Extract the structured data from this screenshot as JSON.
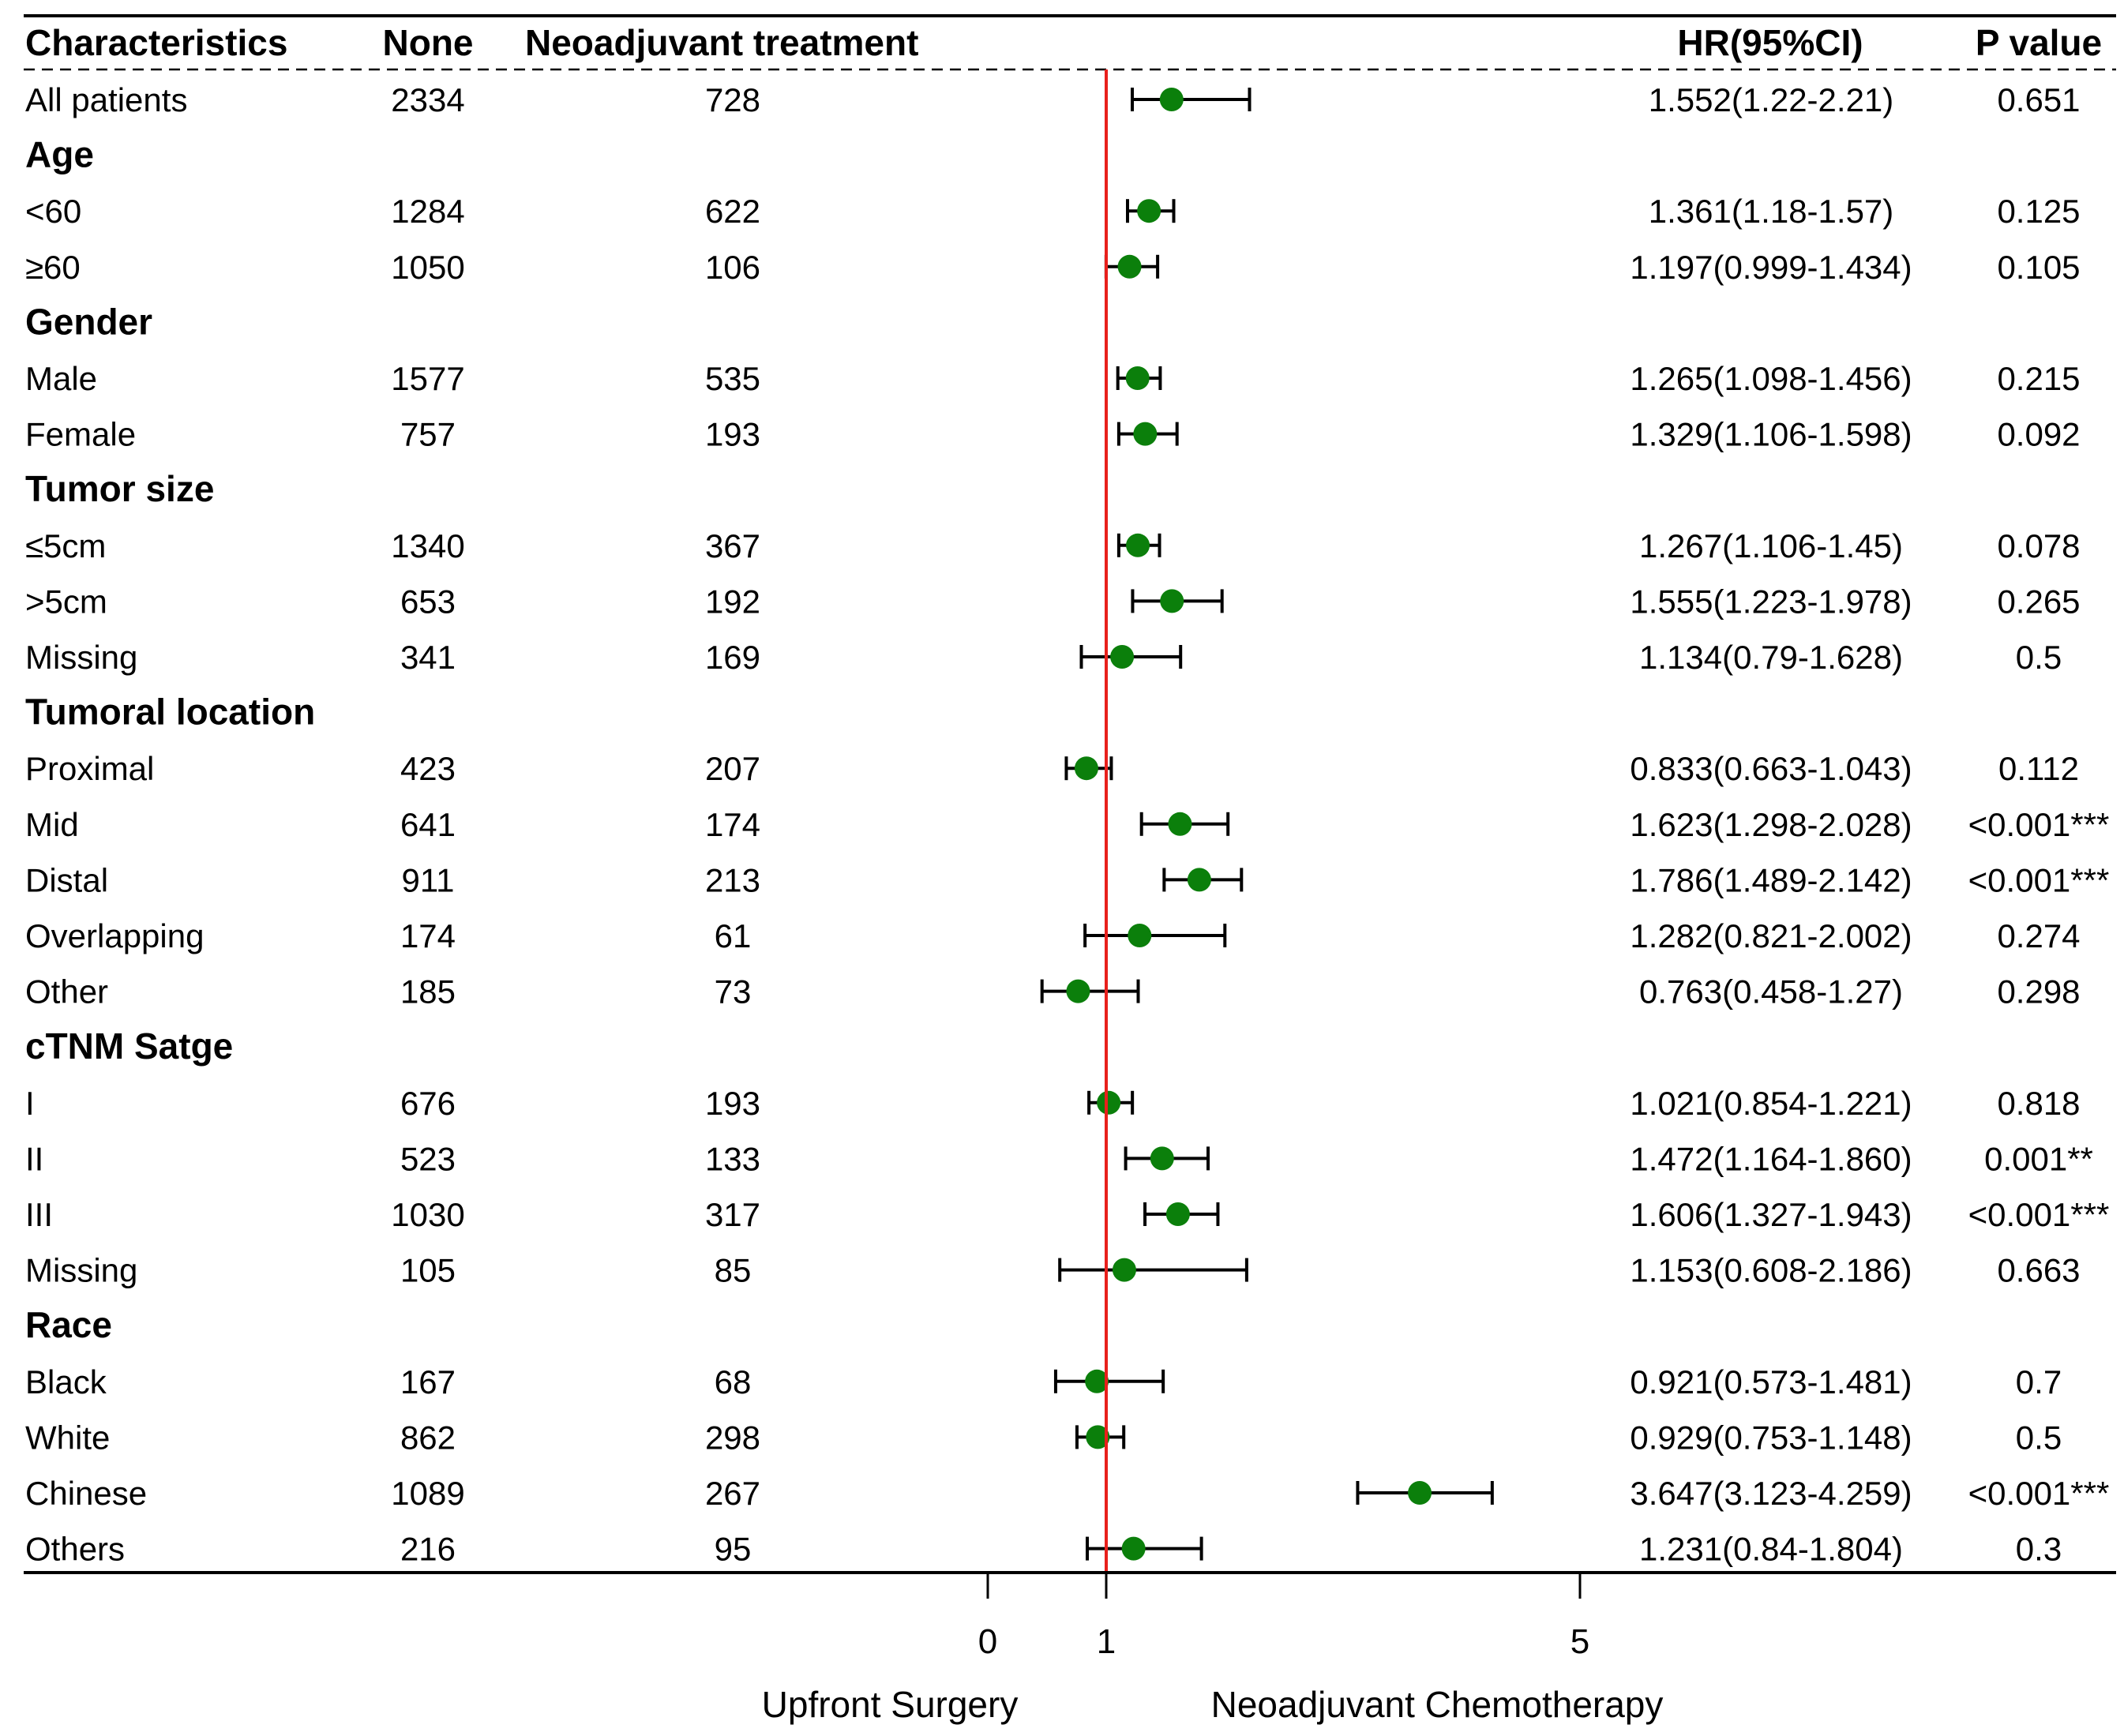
{
  "headers": {
    "characteristics": "Characteristics",
    "none": "None",
    "neo": "Neoadjuvant treatment",
    "hr": "HR(95%CI)",
    "p": "P value"
  },
  "axis": {
    "ticks": [
      {
        "value": 0,
        "label": "0"
      },
      {
        "value": 1,
        "label": "1"
      },
      {
        "value": 5,
        "label": "5"
      }
    ],
    "left_label": "Upfront Surgery",
    "right_label": "Neoadjuvant Chemotherapy",
    "reference_value": 1
  },
  "colors": {
    "point": "#0b7f0b",
    "reference_line": "#e8201c",
    "text": "#000000"
  },
  "chart_data": {
    "type": "forest",
    "x_reference": 1,
    "rows": [
      {
        "kind": "data",
        "label": "All patients",
        "none": "2334",
        "neo": "728",
        "hr": 1.552,
        "lo": 1.22,
        "hi": 2.21,
        "hr_text": "1.552(1.22-2.21)",
        "p": "0.651"
      },
      {
        "kind": "group",
        "label": "Age"
      },
      {
        "kind": "data",
        "label": "<60",
        "none": "1284",
        "neo": "622",
        "hr": 1.361,
        "lo": 1.18,
        "hi": 1.57,
        "hr_text": "1.361(1.18-1.57)",
        "p": "0.125"
      },
      {
        "kind": "data",
        "label": "≥60",
        "none": "1050",
        "neo": "106",
        "hr": 1.197,
        "lo": 0.999,
        "hi": 1.434,
        "hr_text": "1.197(0.999-1.434)",
        "p": "0.105"
      },
      {
        "kind": "group",
        "label": "Gender"
      },
      {
        "kind": "data",
        "label": "Male",
        "none": "1577",
        "neo": "535",
        "hr": 1.265,
        "lo": 1.098,
        "hi": 1.456,
        "hr_text": "1.265(1.098-1.456)",
        "p": "0.215"
      },
      {
        "kind": "data",
        "label": "Female",
        "none": "757",
        "neo": "193",
        "hr": 1.329,
        "lo": 1.106,
        "hi": 1.598,
        "hr_text": "1.329(1.106-1.598)",
        "p": "0.092"
      },
      {
        "kind": "group",
        "label": "Tumor size"
      },
      {
        "kind": "data",
        "label": "≤5cm",
        "none": "1340",
        "neo": "367",
        "hr": 1.267,
        "lo": 1.106,
        "hi": 1.45,
        "hr_text": "1.267(1.106-1.45)",
        "p": "0.078"
      },
      {
        "kind": "data",
        "label": ">5cm",
        "none": "653",
        "neo": "192",
        "hr": 1.555,
        "lo": 1.223,
        "hi": 1.978,
        "hr_text": "1.555(1.223-1.978)",
        "p": "0.265"
      },
      {
        "kind": "data",
        "label": "Missing",
        "none": "341",
        "neo": "169",
        "hr": 1.134,
        "lo": 0.79,
        "hi": 1.628,
        "hr_text": "1.134(0.79-1.628)",
        "p": "0.5"
      },
      {
        "kind": "group",
        "label": "Tumoral location"
      },
      {
        "kind": "data",
        "label": "Proximal",
        "none": "423",
        "neo": "207",
        "hr": 0.833,
        "lo": 0.663,
        "hi": 1.043,
        "hr_text": "0.833(0.663-1.043)",
        "p": "0.112"
      },
      {
        "kind": "data",
        "label": "Mid",
        "none": "641",
        "neo": "174",
        "hr": 1.623,
        "lo": 1.298,
        "hi": 2.028,
        "hr_text": "1.623(1.298-2.028)",
        "p": "<0.001***"
      },
      {
        "kind": "data",
        "label": "Distal",
        "none": "911",
        "neo": "213",
        "hr": 1.786,
        "lo": 1.489,
        "hi": 2.142,
        "hr_text": "1.786(1.489-2.142)",
        "p": "<0.001***"
      },
      {
        "kind": "data",
        "label": "Overlapping",
        "none": "174",
        "neo": "61",
        "hr": 1.282,
        "lo": 0.821,
        "hi": 2.002,
        "hr_text": "1.282(0.821-2.002)",
        "p": "0.274"
      },
      {
        "kind": "data",
        "label": "Other",
        "none": "185",
        "neo": "73",
        "hr": 0.763,
        "lo": 0.458,
        "hi": 1.27,
        "hr_text": "0.763(0.458-1.27)",
        "p": "0.298"
      },
      {
        "kind": "group",
        "label": "cTNM Satge"
      },
      {
        "kind": "data",
        "label": "I",
        "none": "676",
        "neo": "193",
        "hr": 1.021,
        "lo": 0.854,
        "hi": 1.221,
        "hr_text": "1.021(0.854-1.221)",
        "p": "0.818"
      },
      {
        "kind": "data",
        "label": "II",
        "none": "523",
        "neo": "133",
        "hr": 1.472,
        "lo": 1.164,
        "hi": 1.86,
        "hr_text": "1.472(1.164-1.860)",
        "p": "0.001**"
      },
      {
        "kind": "data",
        "label": "III",
        "none": "1030",
        "neo": "317",
        "hr": 1.606,
        "lo": 1.327,
        "hi": 1.943,
        "hr_text": "1.606(1.327-1.943)",
        "p": "<0.001***"
      },
      {
        "kind": "data",
        "label": "Missing",
        "none": "105",
        "neo": "85",
        "hr": 1.153,
        "lo": 0.608,
        "hi": 2.186,
        "hr_text": "1.153(0.608-2.186)",
        "p": "0.663"
      },
      {
        "kind": "group",
        "label": "Race"
      },
      {
        "kind": "data",
        "label": "Black",
        "none": "167",
        "neo": "68",
        "hr": 0.921,
        "lo": 0.573,
        "hi": 1.481,
        "hr_text": "0.921(0.573-1.481)",
        "p": "0.7"
      },
      {
        "kind": "data",
        "label": "White",
        "none": "862",
        "neo": "298",
        "hr": 0.929,
        "lo": 0.753,
        "hi": 1.148,
        "hr_text": "0.929(0.753-1.148)",
        "p": "0.5"
      },
      {
        "kind": "data",
        "label": "Chinese",
        "none": "1089",
        "neo": "267",
        "hr": 3.647,
        "lo": 3.123,
        "hi": 4.259,
        "hr_text": "3.647(3.123-4.259)",
        "p": "<0.001***"
      },
      {
        "kind": "data",
        "label": "Others",
        "none": "216",
        "neo": "95",
        "hr": 1.231,
        "lo": 0.84,
        "hi": 1.804,
        "hr_text": "1.231(0.84-1.804)",
        "p": "0.3"
      }
    ]
  }
}
